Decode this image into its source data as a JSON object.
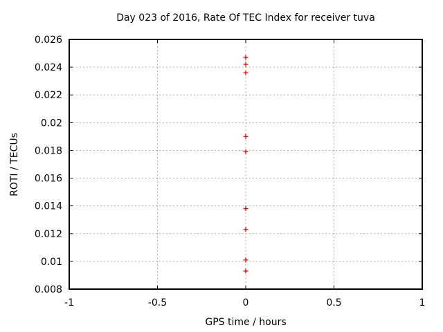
{
  "chart_data": {
    "type": "scatter",
    "title": "Day 023 of 2016, Rate Of TEC Index for receiver tuva",
    "xlabel": "GPS time / hours",
    "ylabel": "ROTI / TECUs",
    "xlim": [
      -1,
      1
    ],
    "ylim": [
      0.008,
      0.026
    ],
    "x_ticks": [
      -1,
      -0.5,
      0,
      0.5,
      1
    ],
    "x_tick_labels": [
      "-1",
      "-0.5",
      "0",
      "0.5",
      "1"
    ],
    "y_ticks": [
      0.008,
      0.01,
      0.012,
      0.014,
      0.016,
      0.018,
      0.02,
      0.022,
      0.024,
      0.026
    ],
    "y_tick_labels": [
      "0.008",
      "0.01",
      "0.012",
      "0.014",
      "0.016",
      "0.018",
      "0.02",
      "0.022",
      "0.024",
      "0.026"
    ],
    "grid": true,
    "grid_style": "dashed",
    "legend": "none",
    "marker": "plus",
    "colors": {
      "marker": "#e60000",
      "grid": "#b0b0b0",
      "axis": "#000000",
      "text": "#000000",
      "background": "#ffffff"
    },
    "series": [
      {
        "name": "ROTI",
        "marker": "plus",
        "color": "#e60000",
        "points": [
          {
            "x": 0,
            "y": 0.0247
          },
          {
            "x": 0,
            "y": 0.0242
          },
          {
            "x": 0,
            "y": 0.0236
          },
          {
            "x": 0,
            "y": 0.019
          },
          {
            "x": 0,
            "y": 0.0179
          },
          {
            "x": 0,
            "y": 0.0138
          },
          {
            "x": 0,
            "y": 0.0123
          },
          {
            "x": 0,
            "y": 0.0101
          },
          {
            "x": 0,
            "y": 0.0093
          }
        ]
      }
    ]
  }
}
